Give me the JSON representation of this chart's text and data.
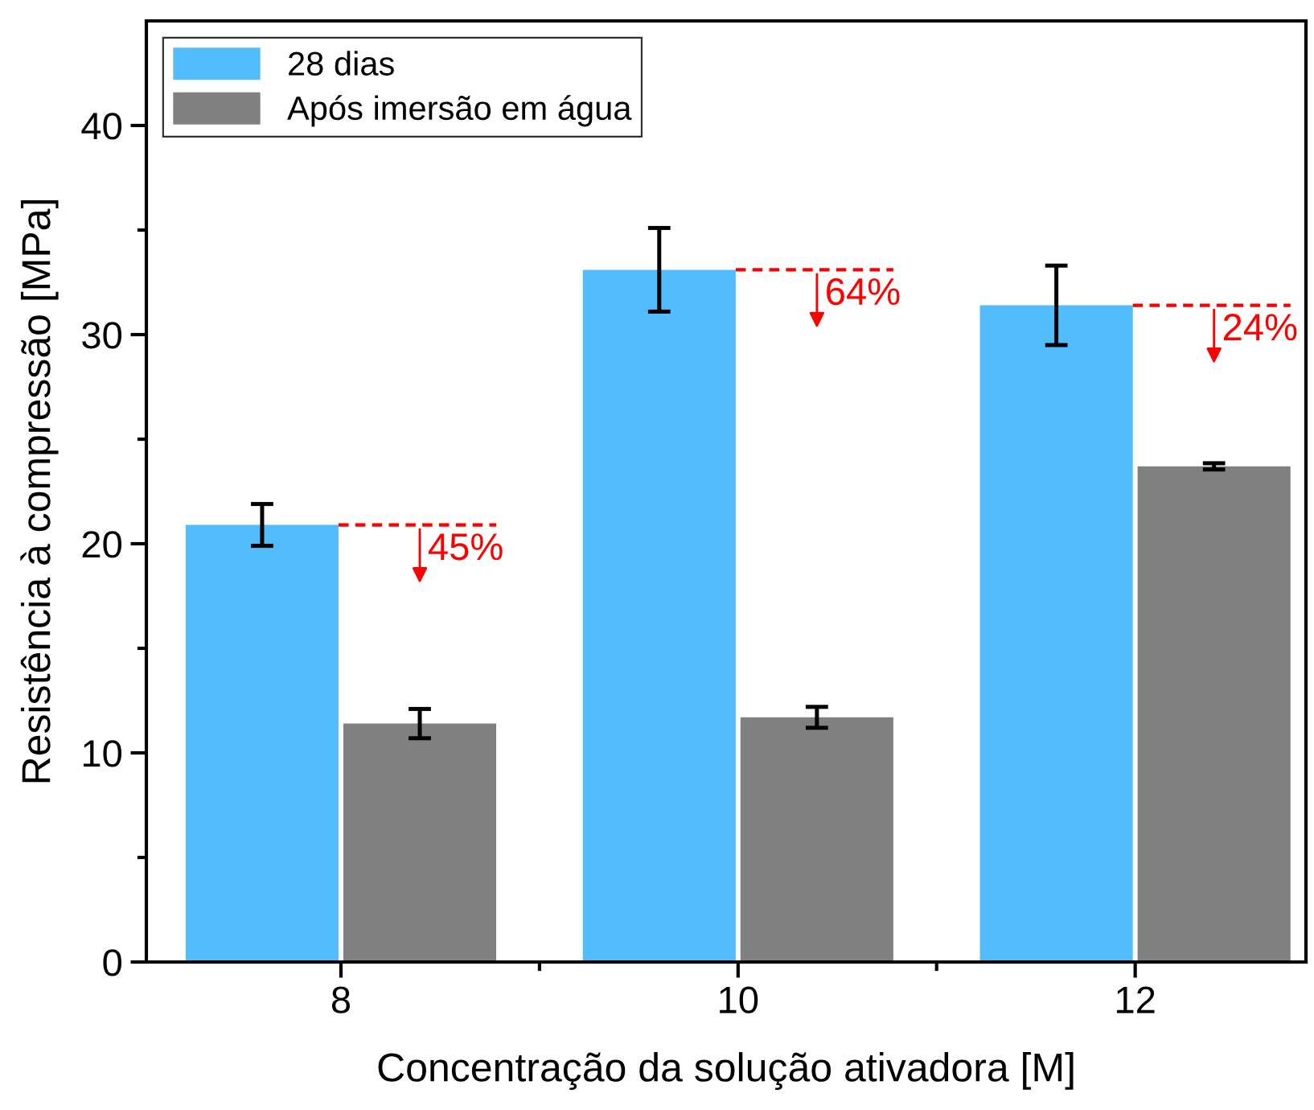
{
  "chart_data": {
    "type": "bar",
    "xlabel": "Concentração da solução ativadora [M]",
    "ylabel": "Resistência à compressão [MPa]",
    "categories": [
      "8",
      "10",
      "12"
    ],
    "series": [
      {
        "name": "28 dias",
        "color": "#52bcfd",
        "values": [
          20.9,
          33.1,
          31.4
        ],
        "errors": [
          1.0,
          2.0,
          1.9
        ]
      },
      {
        "name": "Após imersão em água",
        "color": "#808080",
        "values": [
          11.4,
          11.7,
          23.7
        ],
        "errors": [
          0.7,
          0.5,
          0.15
        ]
      }
    ],
    "ylim": [
      0,
      45
    ],
    "yticks": [
      0,
      10,
      20,
      30,
      40
    ],
    "annotations": [
      {
        "text": "45%",
        "x": "8",
        "y": 20.9
      },
      {
        "text": "64%",
        "x": "10",
        "y": 33.1
      },
      {
        "text": "24%",
        "x": "12",
        "y": 31.4
      }
    ],
    "legend": "top left",
    "grid": false
  }
}
